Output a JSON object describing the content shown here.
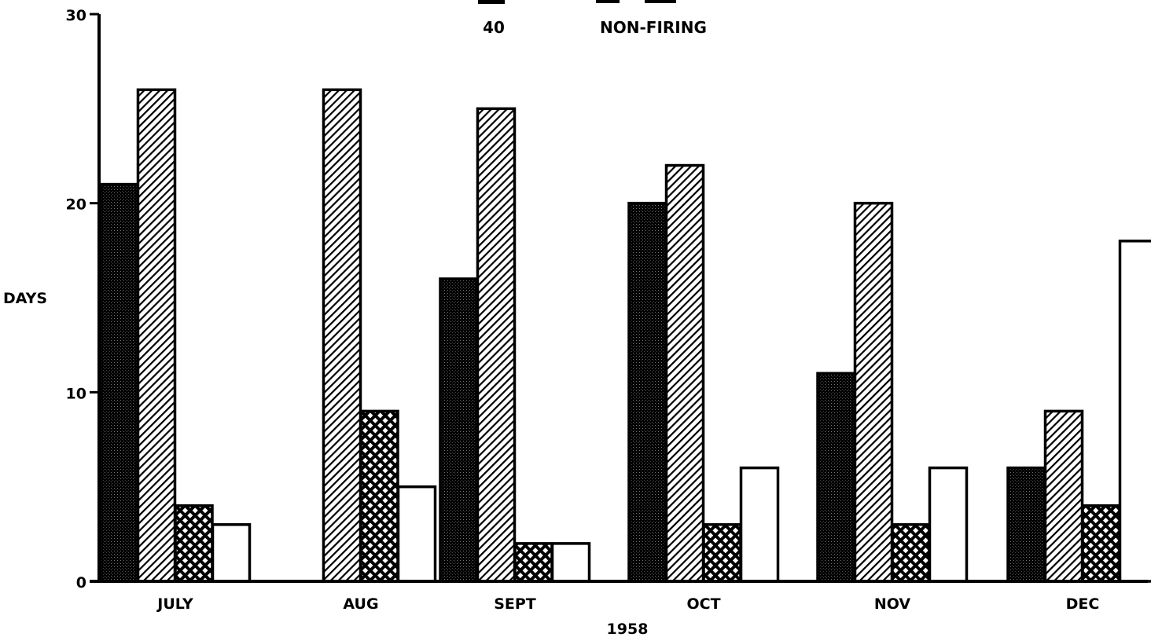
{
  "chart_data": {
    "type": "bar",
    "legend_row": {
      "code": "40",
      "label": "NON-FIRING"
    },
    "ylabel": "DAYS",
    "xlabel": "1958",
    "ylim": [
      0,
      30
    ],
    "y_ticks": [
      "0",
      "10",
      "20",
      "30"
    ],
    "categories": [
      "JULY",
      "AUG",
      "SEPT",
      "OCT",
      "NOV",
      "DEC"
    ],
    "series": [
      {
        "pattern": "dense-dots",
        "color": "#000000",
        "values": [
          21,
          0,
          16,
          20,
          11,
          6
        ]
      },
      {
        "pattern": "diagonal-hatch",
        "color": "#000000",
        "values": [
          26,
          26,
          25,
          22,
          20,
          9
        ]
      },
      {
        "pattern": "crosshatch",
        "color": "#000000",
        "values": [
          4,
          9,
          2,
          3,
          3,
          4
        ]
      },
      {
        "pattern": "open",
        "color": "#ffffff",
        "values": [
          3,
          5,
          2,
          6,
          6,
          18
        ]
      }
    ]
  }
}
